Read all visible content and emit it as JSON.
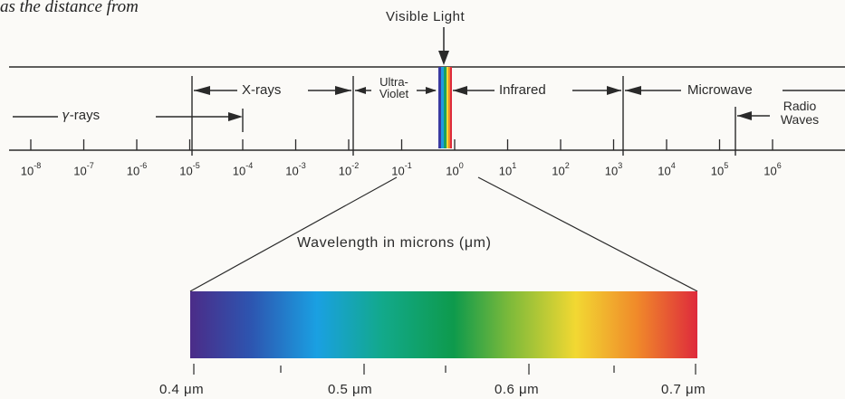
{
  "caption": "as the distance from",
  "visible_light": {
    "label": "Visible Light"
  },
  "regions": {
    "gamma": "𝛾-rays",
    "xrays": "X-rays",
    "uv_line1": "Ultra-",
    "uv_line2": "Violet",
    "infrared": "Infrared",
    "microwave": "Microwave",
    "radio_line1": "Radio",
    "radio_line2": "Waves"
  },
  "scale_ticks": [
    {
      "base": "10",
      "exp": "-8"
    },
    {
      "base": "10",
      "exp": "-7"
    },
    {
      "base": "10",
      "exp": "-6"
    },
    {
      "base": "10",
      "exp": "-5"
    },
    {
      "base": "10",
      "exp": "-4"
    },
    {
      "base": "10",
      "exp": "-3"
    },
    {
      "base": "10",
      "exp": "-2"
    },
    {
      "base": "10",
      "exp": "-1"
    },
    {
      "base": "10",
      "exp": "0"
    },
    {
      "base": "10",
      "exp": "1"
    },
    {
      "base": "10",
      "exp": "2"
    },
    {
      "base": "10",
      "exp": "3"
    },
    {
      "base": "10",
      "exp": "4"
    },
    {
      "base": "10",
      "exp": "5"
    },
    {
      "base": "10",
      "exp": "6"
    }
  ],
  "wavelength_label": "Wavelength in microns (μm)",
  "micron_labels": [
    "0.4 μm",
    "0.5 μm",
    "0.6 μm",
    "0.7 μm"
  ],
  "colors": {
    "line": "#2a2a2a",
    "spectrum": [
      "#4a2a8a",
      "#2f4aa8",
      "#1e9be0",
      "#13a890",
      "#0f9a4f",
      "#7ab83a",
      "#f0d630",
      "#f08a2a",
      "#e0283a"
    ]
  }
}
